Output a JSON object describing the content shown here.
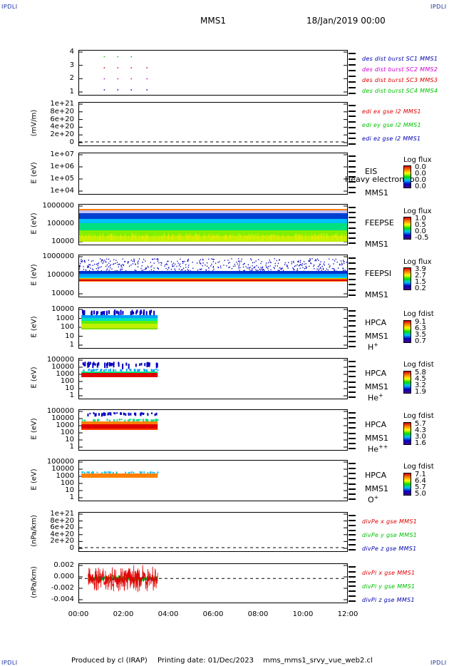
{
  "corner_label": "IPDLI",
  "header": {
    "spacecraft": "MMS1",
    "date": "18/Jan/2019 00:00"
  },
  "footer": {
    "producer": "Produced by cl (IRAP)",
    "printing_date": "Printing date: 01/Dec/2023",
    "filename": "mms_mms1_srvy_vue_web2.cl"
  },
  "x_axis": {
    "ticks": [
      "00:00",
      "02:00",
      "04:00",
      "06:00",
      "08:00",
      "10:00",
      "12:00"
    ]
  },
  "colors": {
    "red": "#e00000",
    "green": "#00c000",
    "blue": "#0000b0",
    "magenta": "#d000d0"
  },
  "chart_data": [
    {
      "type": "scatter",
      "id": "burst",
      "yticks": [
        "4",
        "3",
        "2",
        "1"
      ],
      "ylim": [
        0.5,
        4.5
      ],
      "legend": [
        {
          "text": "des dist burst SC1 MMS1",
          "color": "#0000b0"
        },
        {
          "text": "des dist burst SC2 MMS2",
          "color": "#d000d0"
        },
        {
          "text": "des dist burst SC3 MMS3",
          "color": "#e00000"
        },
        {
          "text": "des dist burst SC4 MMS4",
          "color": "#00c000"
        }
      ],
      "series": [
        {
          "name": "des dist burst SC1 MMS1",
          "y": 1,
          "x": [
            1.1,
            1.7,
            2.3,
            3.0
          ],
          "color": "#0000b0"
        },
        {
          "name": "des dist burst SC2 MMS2",
          "y": 2,
          "x": [
            1.1,
            1.7,
            2.3,
            3.0
          ],
          "color": "#d000d0"
        },
        {
          "name": "des dist burst SC3 MMS3",
          "y": 3,
          "x": [
            1.1,
            1.7,
            2.3,
            3.0
          ],
          "color": "#e00000"
        },
        {
          "name": "des dist burst SC4 MMS4",
          "y": 4,
          "x": [
            1.1,
            1.7,
            2.3
          ],
          "color": "#00c000"
        }
      ]
    },
    {
      "type": "line",
      "id": "edi",
      "ylabel": "(mV/m)",
      "yticks": [
        "1e+21",
        "8e+20",
        "6e+20",
        "4e+20",
        "2e+20",
        "0"
      ],
      "ylim": [
        0,
        1e+21
      ],
      "legend": [
        {
          "text": "edi ex gse l2 MMS1",
          "color": "#e00000"
        },
        {
          "text": "edi ey gse l2 MMS1",
          "color": "#00c000"
        },
        {
          "text": "edi ez gse l2 MMS1",
          "color": "#0000b0"
        }
      ],
      "zero_line": true
    },
    {
      "type": "heatmap",
      "id": "eis",
      "ylabel": "E (eV)",
      "yticks": [
        "1e+07",
        "1e+06",
        "1e+05",
        "1e+04"
      ],
      "instrument": [
        "EIS",
        "MMS1"
      ],
      "overlay_text": "Heavy electron to",
      "colorbar": {
        "title": "Log flux",
        "values": [
          "0.0",
          "0.0",
          "0.0",
          "0.0"
        ]
      }
    },
    {
      "type": "heatmap",
      "id": "feepse",
      "ylabel": "E (eV)",
      "yticks": [
        "1000000",
        "100000",
        "10000"
      ],
      "instrument": [
        "FEEPSE",
        "MMS1"
      ],
      "colorbar": {
        "title": "Log flux",
        "values": [
          "1.0",
          "0.5",
          "0.0",
          "-0.5"
        ]
      },
      "time_range": [
        0,
        12
      ]
    },
    {
      "type": "heatmap",
      "id": "feepsi",
      "ylabel": "E (eV)",
      "yticks": [
        "1000000",
        "100000",
        "10000"
      ],
      "instrument": [
        "FEEPSI",
        "MMS1"
      ],
      "colorbar": {
        "title": "Log flux",
        "values": [
          "3.9",
          "2.7",
          "1.5",
          "0.2"
        ]
      },
      "time_range": [
        0,
        12
      ]
    },
    {
      "type": "heatmap",
      "id": "hpca_h",
      "ylabel": "E (eV)",
      "yticks": [
        "10000",
        "1000",
        "100",
        "10",
        "1"
      ],
      "instrument": [
        "HPCA",
        "MMS1"
      ],
      "species": "H",
      "charge": "+",
      "colorbar": {
        "title": "Log fdist",
        "values": [
          "9.1",
          "6.3",
          "3.5",
          "0.7"
        ]
      },
      "time_range": [
        0.1,
        3.5
      ]
    },
    {
      "type": "heatmap",
      "id": "hpca_he1",
      "ylabel": "E (eV)",
      "yticks": [
        "100000",
        "10000",
        "1000",
        "100",
        "10",
        "1"
      ],
      "instrument": [
        "HPCA",
        "MMS1"
      ],
      "species": "He",
      "charge": "+",
      "colorbar": {
        "title": "Log fdist",
        "values": [
          "5.8",
          "4.5",
          "3.2",
          "1.9"
        ]
      },
      "time_range": [
        0.1,
        3.5
      ]
    },
    {
      "type": "heatmap",
      "id": "hpca_he2",
      "ylabel": "E (eV)",
      "yticks": [
        "100000",
        "10000",
        "1000",
        "100",
        "10",
        "1"
      ],
      "instrument": [
        "HPCA",
        "MMS1"
      ],
      "species": "He",
      "charge": "++",
      "colorbar": {
        "title": "Log fdist",
        "values": [
          "5.7",
          "4.3",
          "3.0",
          "1.6"
        ]
      },
      "time_range": [
        0.1,
        3.5
      ]
    },
    {
      "type": "heatmap",
      "id": "hpca_o",
      "ylabel": "E (eV)",
      "yticks": [
        "100000",
        "10000",
        "1000",
        "100",
        "10",
        "1"
      ],
      "instrument": [
        "HPCA",
        "MMS1"
      ],
      "species": "O",
      "charge": "+",
      "colorbar": {
        "title": "Log fdist",
        "values": [
          "7.1",
          "6.4",
          "5.7",
          "5.0"
        ]
      },
      "time_range": [
        0.1,
        3.5
      ]
    },
    {
      "type": "line",
      "id": "divpe",
      "ylabel": "(nPa/km)",
      "yticks": [
        "1e+21",
        "8e+20",
        "6e+20",
        "4e+20",
        "2e+20",
        "0"
      ],
      "ylim": [
        0,
        1e+21
      ],
      "legend": [
        {
          "text": "divPe x gse MMS1",
          "color": "#e00000"
        },
        {
          "text": "divPe y gse MMS1",
          "color": "#00c000"
        },
        {
          "text": "divPe z gse MMS1",
          "color": "#0000b0"
        }
      ],
      "zero_line": true
    },
    {
      "type": "line",
      "id": "divpi",
      "ylabel": "(nPa/km)",
      "yticks": [
        "0.002",
        "0.000",
        "-0.002",
        "-0.004"
      ],
      "ylim": [
        -0.005,
        0.003
      ],
      "legend": [
        {
          "text": "divPi x gse MMS1",
          "color": "#e00000"
        },
        {
          "text": "divPi y gse MMS1",
          "color": "#00c000"
        },
        {
          "text": "divPi z gse MMS1",
          "color": "#0000b0"
        }
      ],
      "zero_line": true,
      "time_range": [
        0.4,
        3.5
      ],
      "series": [
        {
          "name": "divPi x gse MMS1",
          "color": "#e00000",
          "amplitude": 0.003
        },
        {
          "name": "divPi y gse MMS1",
          "color": "#00c000",
          "amplitude": 0.0008
        },
        {
          "name": "divPi z gse MMS1",
          "color": "#0000b0",
          "amplitude": 0.0006
        }
      ]
    }
  ]
}
